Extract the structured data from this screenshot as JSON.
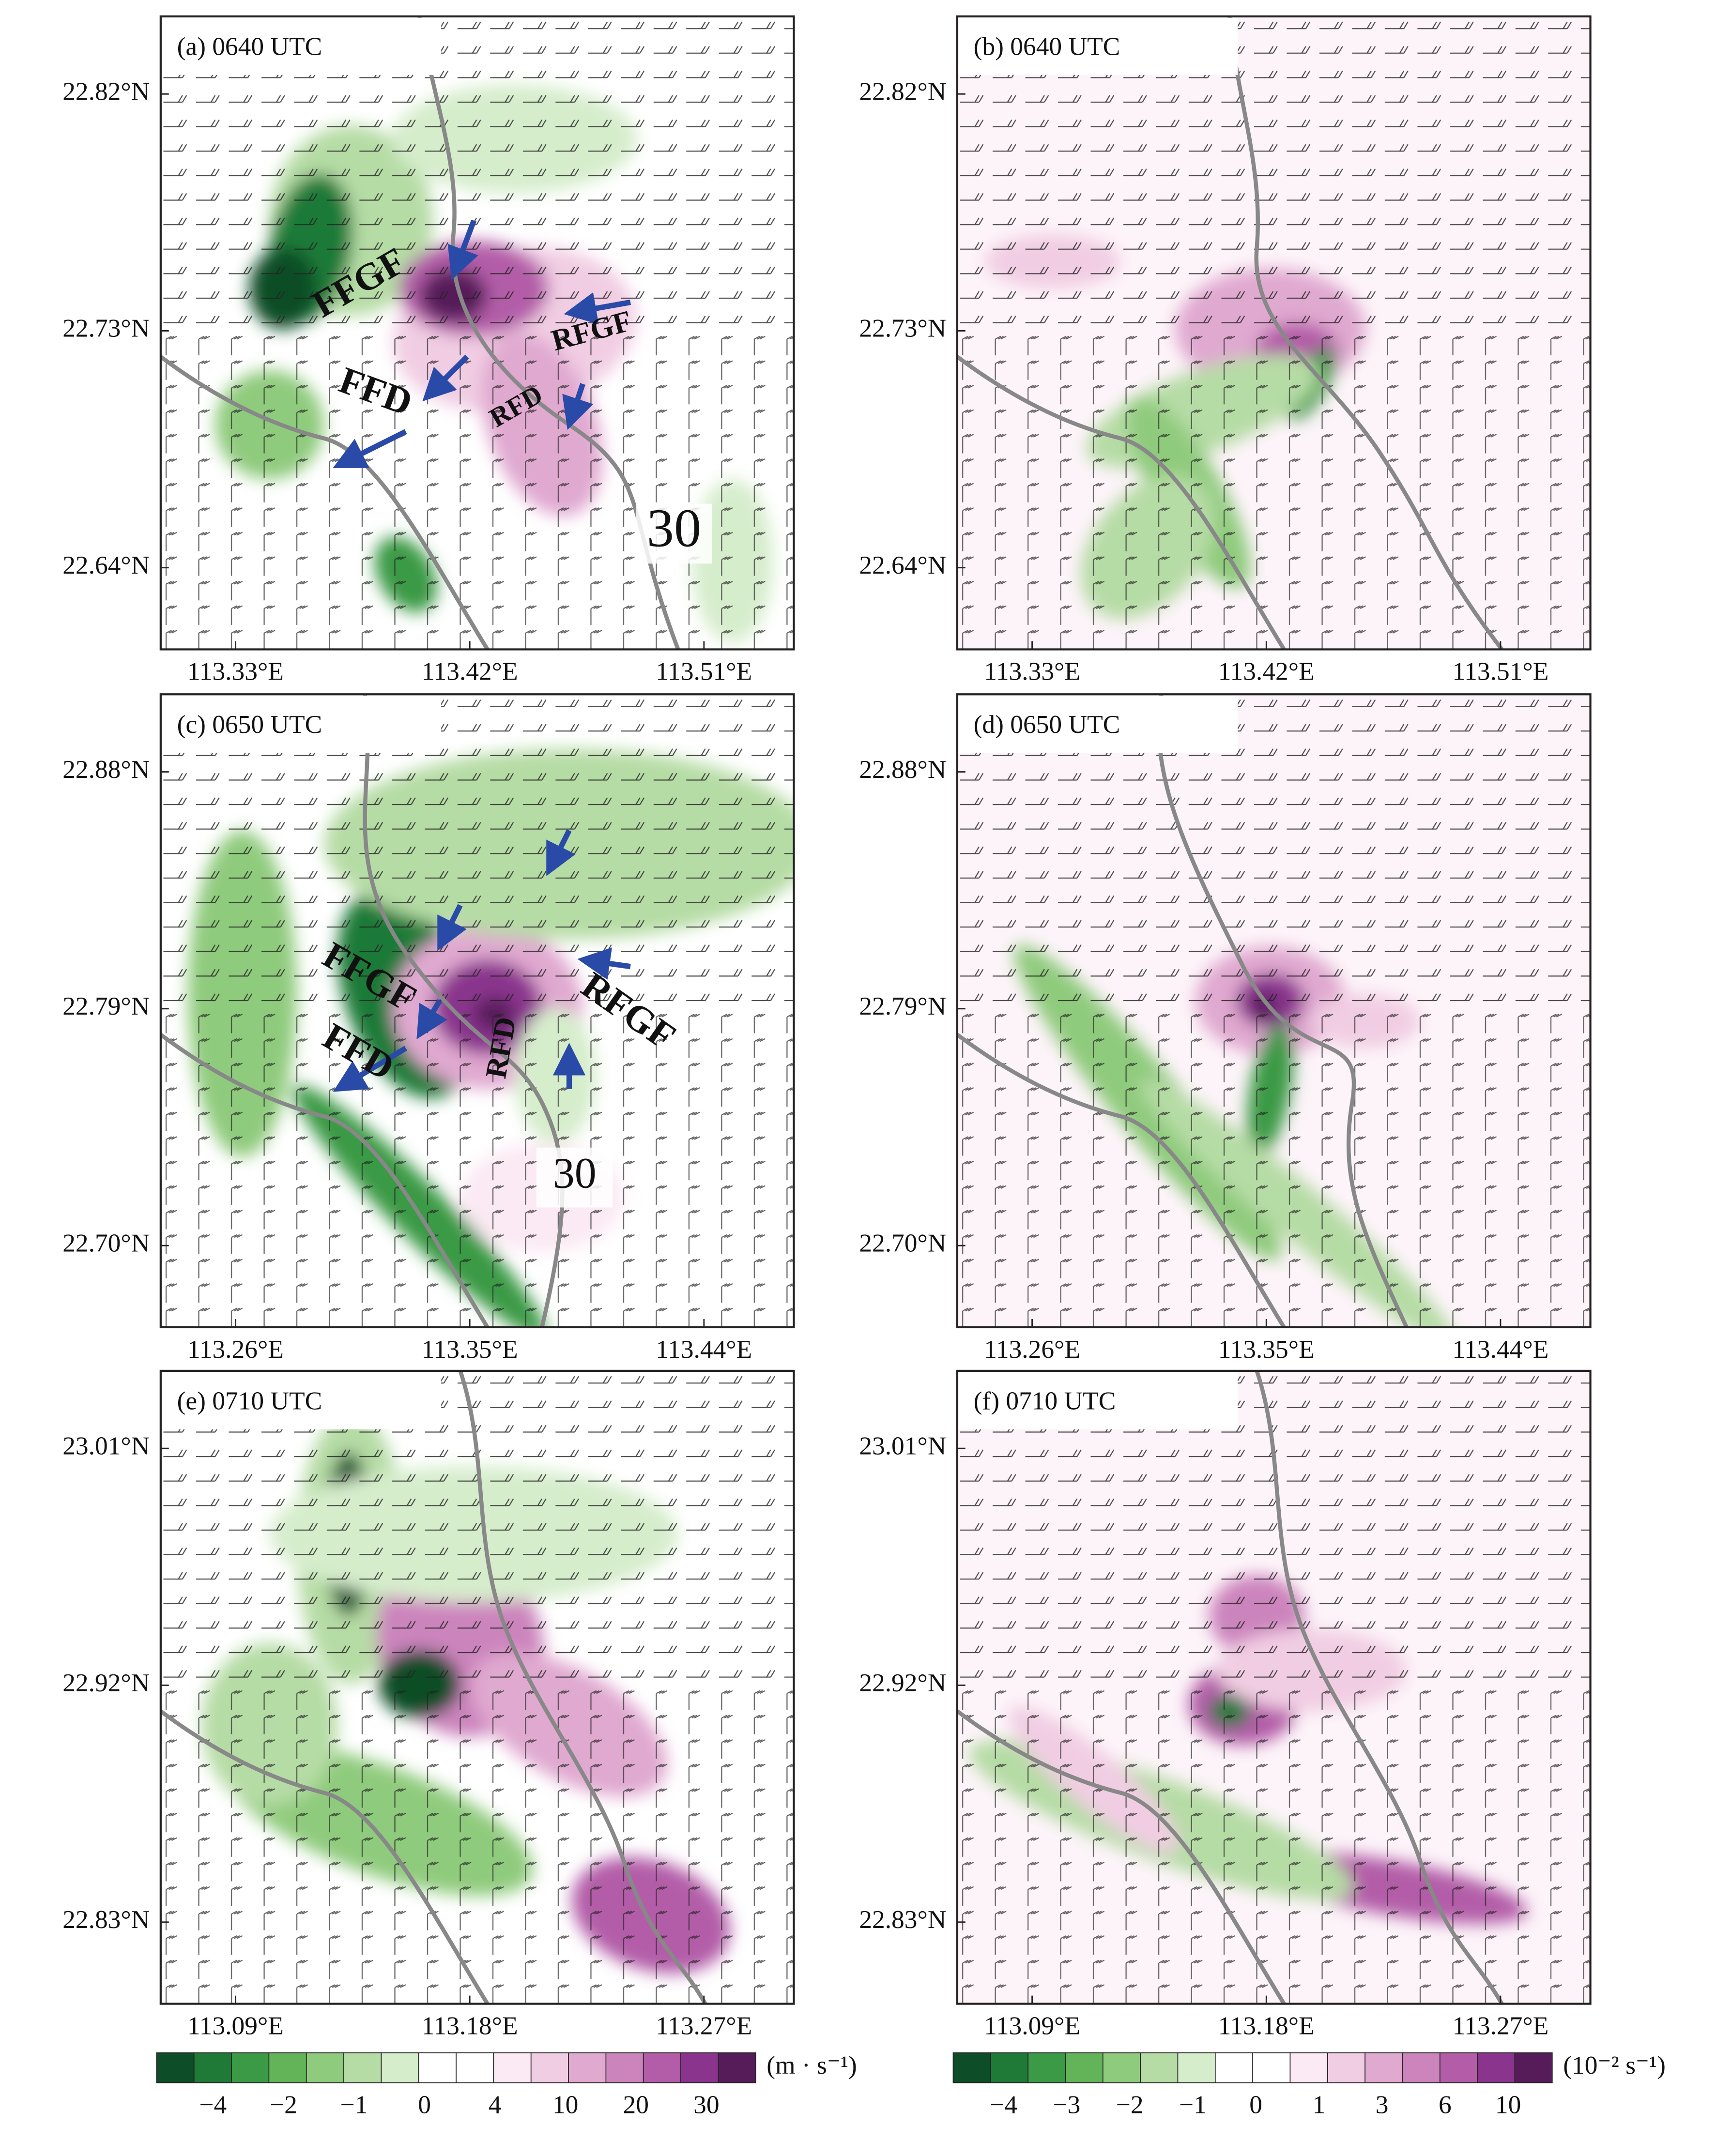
{
  "panels": [
    {
      "label": "(a) 0640 UTC",
      "xticks": [
        "113.33°E",
        "113.42°E",
        "113.51°E"
      ],
      "yticks": [
        "22.82°N",
        "22.73°N",
        "22.64°N"
      ],
      "annotations": [
        "FFGF",
        "FFD",
        "RFGF",
        "RFD",
        "30"
      ]
    },
    {
      "label": "(b) 0640 UTC",
      "xticks": [
        "113.33°E",
        "113.42°E",
        "113.51°E"
      ],
      "yticks": [
        "22.82°N",
        "22.73°N",
        "22.64°N"
      ]
    },
    {
      "label": "(c) 0650 UTC",
      "xticks": [
        "113.26°E",
        "113.35°E",
        "113.44°E"
      ],
      "yticks": [
        "22.88°N",
        "22.79°N",
        "22.70°N"
      ],
      "annotations": [
        "FFGF",
        "FFD",
        "RFGF",
        "RFD",
        "30"
      ]
    },
    {
      "label": "(d) 0650 UTC",
      "xticks": [
        "113.26°E",
        "113.35°E",
        "113.44°E"
      ],
      "yticks": [
        "22.88°N",
        "22.79°N",
        "22.70°N"
      ]
    },
    {
      "label": "(e) 0710 UTC",
      "xticks": [
        "113.09°E",
        "113.18°E",
        "113.27°E"
      ],
      "yticks": [
        "23.01°N",
        "22.92°N",
        "22.83°N"
      ]
    },
    {
      "label": "(f) 0710 UTC",
      "xticks": [
        "113.09°E",
        "113.18°E",
        "113.27°E"
      ],
      "yticks": [
        "23.01°N",
        "22.92°N",
        "22.83°N"
      ]
    }
  ],
  "colorbars": [
    {
      "ticks": [
        "−4",
        "−2",
        "−1",
        "0",
        "4",
        "10",
        "20",
        "30"
      ],
      "unit": "(m · s⁻¹)"
    },
    {
      "ticks": [
        "−4",
        "−3",
        "−2",
        "−1",
        "0",
        "1",
        "3",
        "6",
        "10"
      ],
      "unit": "(10⁻² s⁻¹)"
    }
  ]
}
